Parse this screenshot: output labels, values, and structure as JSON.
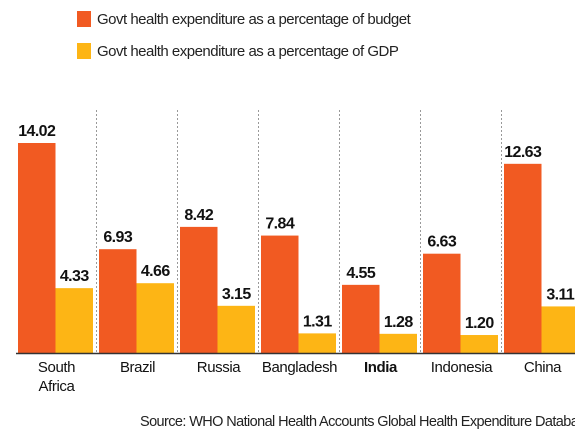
{
  "chart_data": {
    "type": "bar",
    "categories": [
      "South Africa",
      "Brazil",
      "Russia",
      "Bangladesh",
      "India",
      "Indonesia",
      "China"
    ],
    "highlight": "India",
    "series": [
      {
        "name": "Govt health expenditure as a percentage of budget",
        "color": "#f15a22",
        "values": [
          14.02,
          6.93,
          8.42,
          7.84,
          4.55,
          6.63,
          12.63
        ],
        "value_labels": [
          "14.02",
          "6.93",
          "8.42",
          "7.84",
          "4.55",
          "6.63",
          "12.63"
        ]
      },
      {
        "name": "Govt health expenditure as a percentage of GDP",
        "color": "#fdb515",
        "values": [
          4.33,
          4.66,
          3.15,
          1.31,
          1.28,
          1.2,
          3.11
        ],
        "value_labels": [
          "4.33",
          "4.66",
          "3.15",
          "1.31",
          "1.28",
          "1.20",
          "3.11"
        ]
      }
    ],
    "source": "Source: WHO National Health Accounts Global Health Expenditure Database"
  }
}
